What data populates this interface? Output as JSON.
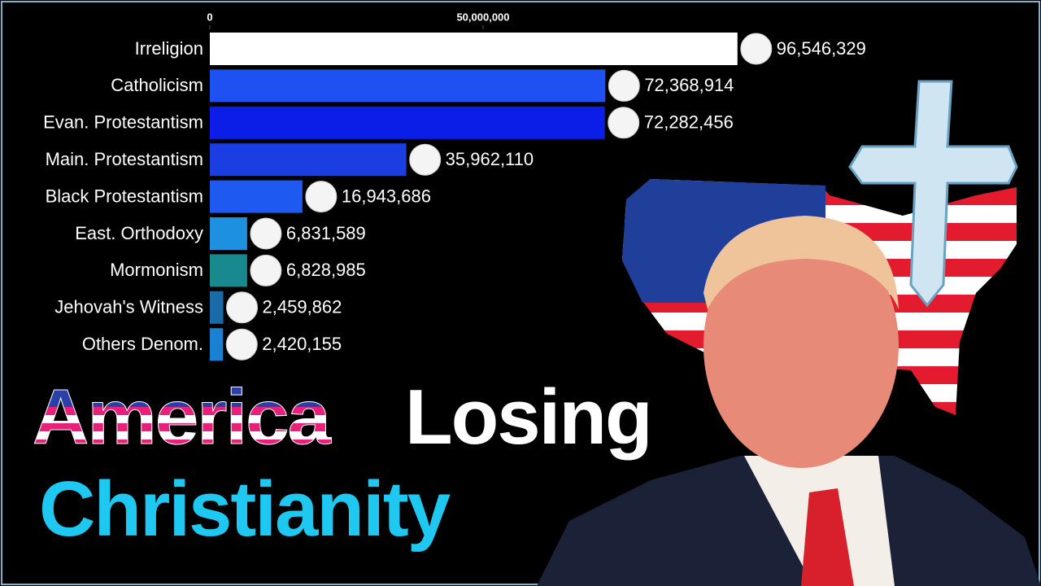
{
  "chart_data": {
    "type": "bar",
    "orientation": "horizontal",
    "categories": [
      "Irreligion",
      "Catholicism",
      "Evan. Protestantism",
      "Main. Protestantism",
      "Black Protestantism",
      "East. Orthodoxy",
      "Mormonism",
      "Jehovah's Witness",
      "Others Denom."
    ],
    "values": [
      96546329,
      72368914,
      72282456,
      35962110,
      16943686,
      6831589,
      6828985,
      2459862,
      2420155
    ],
    "value_labels": [
      "96,546,329",
      "72,368,914",
      "72,282,456",
      "35,962,110",
      "16,943,686",
      "6,831,589",
      "6,828,985",
      "2,459,862",
      "2,420,155"
    ],
    "colors": [
      "#ffffff",
      "#1f50f2",
      "#0a1ee8",
      "#1a3ee2",
      "#1e5af0",
      "#1e90e0",
      "#17898f",
      "#1a6aa8",
      "#1a80d2"
    ],
    "xlim": [
      0,
      150000000
    ],
    "xticks": [
      0,
      {
        "value": 50000000,
        "label": "50,000,000"
      }
    ],
    "annotations": [
      "America",
      "Losing",
      "Christianity"
    ]
  }
}
